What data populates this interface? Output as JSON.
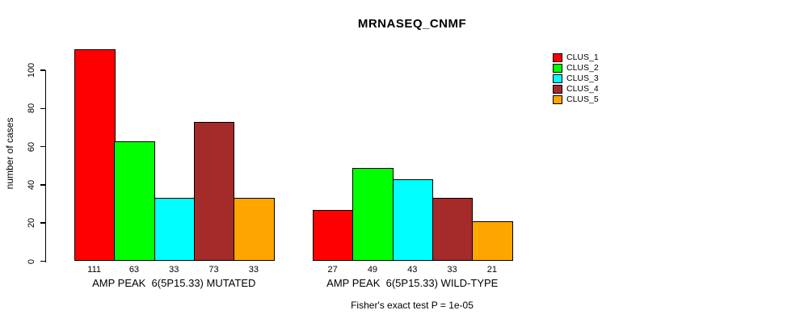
{
  "title": "MRNASEQ_CNMF",
  "ylabel": "number of cases",
  "footer": "Fisher's exact test P = 1e-05",
  "legend": {
    "position": "right",
    "items": [
      {
        "label": "CLUS_1",
        "color": "#FF0000"
      },
      {
        "label": "CLUS_2",
        "color": "#00FF00"
      },
      {
        "label": "CLUS_3",
        "color": "#00FFFF"
      },
      {
        "label": "CLUS_4",
        "color": "#A52A2A"
      },
      {
        "label": "CLUS_5",
        "color": "#FFA500"
      }
    ]
  },
  "chart_data": {
    "type": "bar",
    "title": "MRNASEQ_CNMF",
    "xlabel": "",
    "ylabel": "number of cases",
    "yticks": [
      0,
      20,
      40,
      60,
      80,
      100
    ],
    "ylim": [
      0,
      115
    ],
    "grid": false,
    "legend_position": "right",
    "series": [
      "CLUS_1",
      "CLUS_2",
      "CLUS_3",
      "CLUS_4",
      "CLUS_5"
    ],
    "series_colors": [
      "#FF0000",
      "#00FF00",
      "#00FFFF",
      "#A52A2A",
      "#FFA500"
    ],
    "groups": [
      {
        "label": "AMP PEAK  6(5P15.33) MUTATED",
        "values": [
          111,
          63,
          33,
          73,
          33
        ]
      },
      {
        "label": "AMP PEAK  6(5P15.33) WILD-TYPE",
        "values": [
          27,
          49,
          43,
          33,
          21
        ]
      }
    ],
    "bar_value_labels_shown": true,
    "annotation": "Fisher's exact test P = 1e-05",
    "axis_color": "#000000",
    "background_color": "#FFFFFF"
  }
}
